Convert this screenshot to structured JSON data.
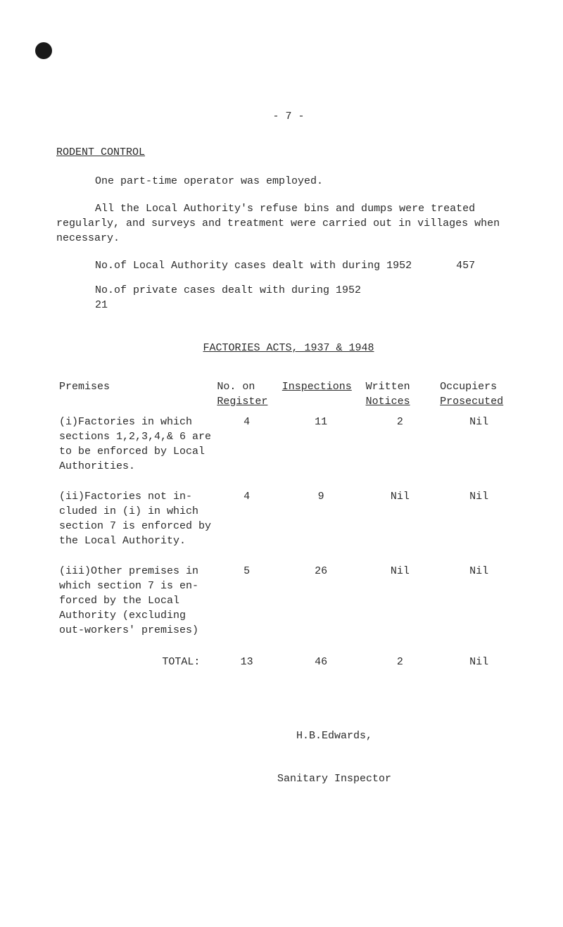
{
  "page_number": "- 7 -",
  "rodent": {
    "heading": "RODENT CONTROL",
    "p1": "One part-time operator was employed.",
    "p2": "All the Local Authority's refuse bins and dumps were treated regularly, and surveys and treatment were carried out in villages when necessary.",
    "line1_label": "No.of Local Authority cases dealt with during 1952",
    "line1_value": "457",
    "line2_label": "No.of private cases dealt with during 1952",
    "line2_value": "21"
  },
  "factories": {
    "heading": "FACTORIES ACTS, 1937 & 1948",
    "columns": {
      "premises": "Premises",
      "register_l1": "No. on",
      "register_l2": "Register",
      "inspections": "Inspections",
      "written_l1": "Written",
      "written_l2": "Notices",
      "occupiers_l1": "Occupiers",
      "occupiers_l2": "Prosecuted"
    },
    "rows": [
      {
        "desc": "(i)Factories in which sections 1,2,3,4,& 6 are to be enforced by Local Authorities.",
        "reg": "4",
        "insp": "11",
        "written": "2",
        "occ": "Nil"
      },
      {
        "desc": "(ii)Factories not in- cluded in (i) in which section 7 is enforced by the Local Authority.",
        "reg": "4",
        "insp": "9",
        "written": "Nil",
        "occ": "Nil"
      },
      {
        "desc": "(iii)Other premises in which section 7 is en- forced by the Local Authority (excluding out-workers' premises)",
        "reg": "5",
        "insp": "26",
        "written": "Nil",
        "occ": "Nil"
      }
    ],
    "total_label": "TOTAL:",
    "total": {
      "reg": "13",
      "insp": "46",
      "written": "2",
      "occ": "Nil"
    }
  },
  "signature": "H.B.Edwards,",
  "inspector": "Sanitary Inspector"
}
